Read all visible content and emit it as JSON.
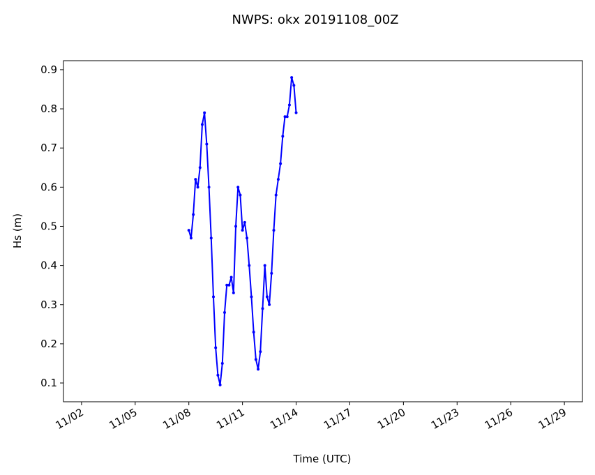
{
  "chart_data": {
    "type": "line",
    "title": "NWPS: okx 20191108_00Z",
    "xlabel": "Time (UTC)",
    "ylabel": "Hs (m)",
    "x": [
      8,
      8.125,
      8.25,
      8.375,
      8.5,
      8.625,
      8.75,
      8.875,
      9,
      9.125,
      9.25,
      9.375,
      9.5,
      9.625,
      9.75,
      9.875,
      10,
      10.125,
      10.25,
      10.375,
      10.5,
      10.625,
      10.75,
      10.875,
      11,
      11.125,
      11.25,
      11.375,
      11.5,
      11.625,
      11.75,
      11.875,
      12,
      12.125,
      12.25,
      12.375,
      12.5,
      12.625,
      12.75,
      12.875,
      13,
      13.125,
      13.25,
      13.375,
      13.5,
      13.625,
      13.75,
      13.875,
      14
    ],
    "series": [
      {
        "name": "Hs",
        "color": "#0000ff",
        "values": [
          0.49,
          0.47,
          0.53,
          0.62,
          0.6,
          0.65,
          0.76,
          0.79,
          0.71,
          0.6,
          0.47,
          0.32,
          0.19,
          0.12,
          0.095,
          0.15,
          0.28,
          0.35,
          0.35,
          0.37,
          0.33,
          0.5,
          0.6,
          0.58,
          0.49,
          0.51,
          0.47,
          0.4,
          0.32,
          0.23,
          0.16,
          0.135,
          0.18,
          0.29,
          0.4,
          0.32,
          0.3,
          0.38,
          0.49,
          0.58,
          0.62,
          0.66,
          0.73,
          0.78,
          0.78,
          0.81,
          0.88,
          0.86,
          0.79
        ]
      }
    ],
    "xlim": [
      0.99,
      30.01
    ],
    "xticks": [
      {
        "value": 2,
        "label": "11/02"
      },
      {
        "value": 5,
        "label": "11/05"
      },
      {
        "value": 8,
        "label": "11/08"
      },
      {
        "value": 11,
        "label": "11/11"
      },
      {
        "value": 14,
        "label": "11/14"
      },
      {
        "value": 17,
        "label": "11/17"
      },
      {
        "value": 20,
        "label": "11/20"
      },
      {
        "value": 23,
        "label": "11/23"
      },
      {
        "value": 26,
        "label": "11/26"
      },
      {
        "value": 29,
        "label": "11/29"
      }
    ],
    "ylim": [
      0.052,
      0.923
    ],
    "yticks": [
      0.1,
      0.2,
      0.3,
      0.4,
      0.5,
      0.6,
      0.7,
      0.8,
      0.9
    ],
    "grid": false
  }
}
